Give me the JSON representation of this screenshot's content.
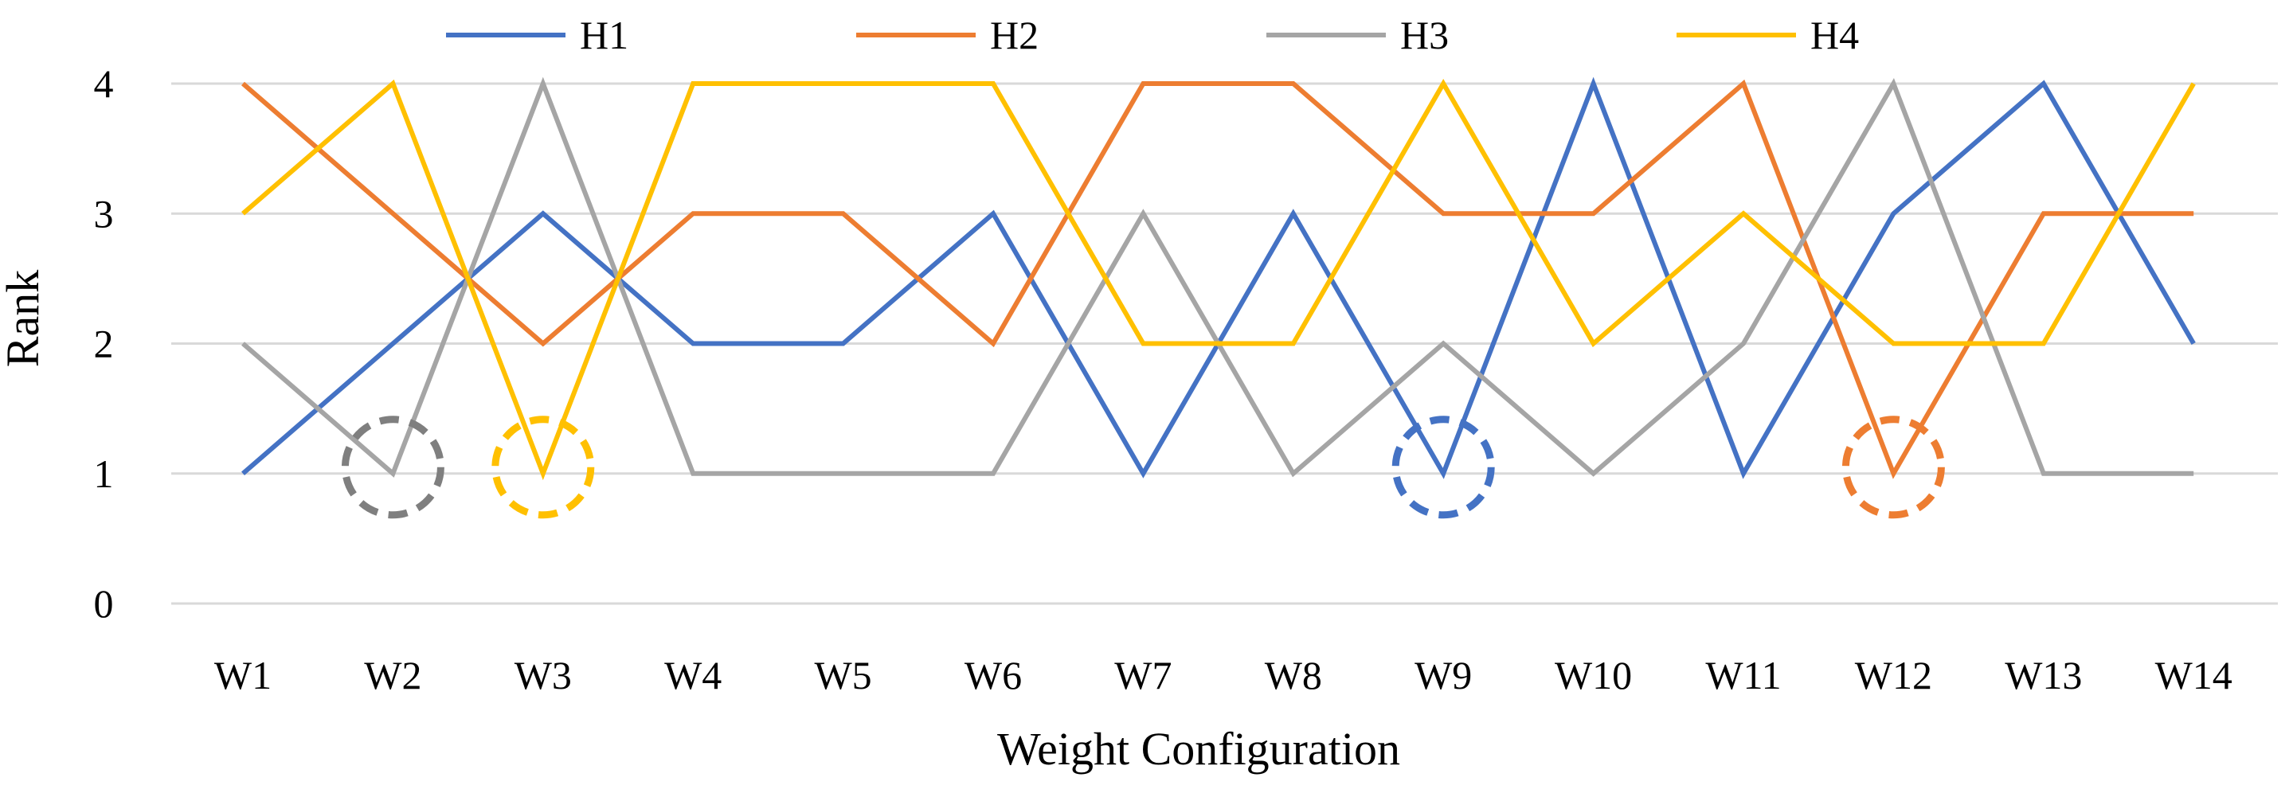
{
  "chart_data": {
    "type": "line",
    "title": "",
    "xlabel": "Weight Configuration",
    "ylabel": "Rank",
    "ylim": [
      0,
      4
    ],
    "yticks": [
      "0",
      "1",
      "2",
      "3",
      "4"
    ],
    "grid": true,
    "legend_position": "top",
    "categories": [
      "W1",
      "W2",
      "W3",
      "W4",
      "W5",
      "W6",
      "W7",
      "W8",
      "W9",
      "W10",
      "W11",
      "W12",
      "W13",
      "W14"
    ],
    "series": [
      {
        "name": "H1",
        "color": "#4472C4",
        "values": [
          1,
          2,
          3,
          2,
          2,
          3,
          1,
          3,
          1,
          4,
          1,
          3,
          4,
          2
        ]
      },
      {
        "name": "H2",
        "color": "#ED7D31",
        "values": [
          4,
          3,
          2,
          3,
          3,
          2,
          4,
          4,
          3,
          3,
          4,
          1,
          3,
          3
        ]
      },
      {
        "name": "H3",
        "color": "#A5A5A5",
        "values": [
          2,
          1,
          4,
          1,
          1,
          1,
          3,
          1,
          2,
          1,
          2,
          4,
          1,
          1
        ]
      },
      {
        "name": "H4",
        "color": "#FFC000",
        "values": [
          3,
          4,
          1,
          4,
          4,
          4,
          2,
          2,
          4,
          2,
          3,
          2,
          2,
          4
        ]
      }
    ],
    "highlights": [
      {
        "series": "H3",
        "category": "W2",
        "value": 1,
        "color": "#7F7F7F"
      },
      {
        "series": "H4",
        "category": "W3",
        "value": 1,
        "color": "#FFC000"
      },
      {
        "series": "H1",
        "category": "W9",
        "value": 1,
        "color": "#4472C4"
      },
      {
        "series": "H2",
        "category": "W12",
        "value": 1,
        "color": "#ED7D31"
      }
    ]
  }
}
